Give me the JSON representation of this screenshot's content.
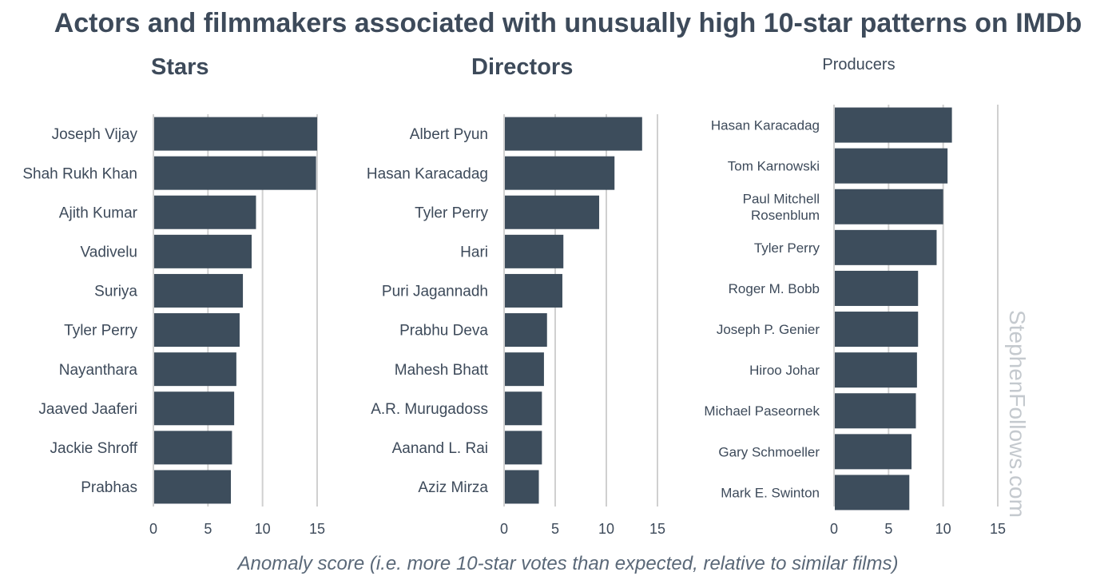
{
  "title": "Actors and filmmakers associated with unusually high 10-star patterns on IMDb",
  "x_caption": "Anomaly score (i.e. more 10-star votes than expected, relative to similar films)",
  "watermark": "StephenFollows.com",
  "colors": {
    "bar": "#3d4d5c",
    "grid": "#d0d0d0",
    "text": "#3d4a5a"
  },
  "chart_data": [
    {
      "type": "bar",
      "orientation": "horizontal",
      "title": "Stars",
      "categories": [
        "Joseph Vijay",
        "Shah Rukh Khan",
        "Ajith Kumar",
        "Vadivelu",
        "Suriya",
        "Tyler Perry",
        "Nayanthara",
        "Jaaved Jaaferi",
        "Jackie Shroff",
        "Prabhas"
      ],
      "values": [
        15.0,
        14.9,
        9.4,
        9.0,
        8.2,
        7.9,
        7.6,
        7.4,
        7.2,
        7.1
      ],
      "xlim": [
        0,
        15
      ],
      "xticks": [
        "0",
        "5",
        "10",
        "15"
      ],
      "xlabel": "Anomaly score (i.e. more 10-star votes than expected, relative to similar films)"
    },
    {
      "type": "bar",
      "orientation": "horizontal",
      "title": "Directors",
      "categories": [
        "Albert Pyun",
        "Hasan Karacadag",
        "Tyler Perry",
        "Hari",
        "Puri Jagannadh",
        "Prabhu Deva",
        "Mahesh Bhatt",
        "A.R. Murugadoss",
        "Aanand L. Rai",
        "Aziz Mirza"
      ],
      "values": [
        13.5,
        10.8,
        9.3,
        5.8,
        5.7,
        4.2,
        3.9,
        3.7,
        3.7,
        3.4
      ],
      "xlim": [
        0,
        15
      ],
      "xticks": [
        "0",
        "5",
        "10",
        "15"
      ],
      "xlabel": "Anomaly score (i.e. more 10-star votes than expected, relative to similar films)"
    },
    {
      "type": "bar",
      "orientation": "horizontal",
      "title": "Producers",
      "categories": [
        "Hasan Karacadag",
        "Tom Karnowski",
        "Paul Mitchell Rosenblum",
        "Tyler Perry",
        "Roger M. Bobb",
        "Joseph P. Genier",
        "Hiroo Johar",
        "Michael Paseornek",
        "Gary Schmoeller",
        "Mark E. Swinton"
      ],
      "values": [
        10.8,
        10.4,
        10.0,
        9.4,
        7.7,
        7.7,
        7.6,
        7.5,
        7.1,
        6.9
      ],
      "xlim": [
        0,
        15
      ],
      "xticks": [
        "0",
        "5",
        "10",
        "15"
      ],
      "xlabel": "Anomaly score (i.e. more 10-star votes than expected, relative to similar films)"
    }
  ]
}
